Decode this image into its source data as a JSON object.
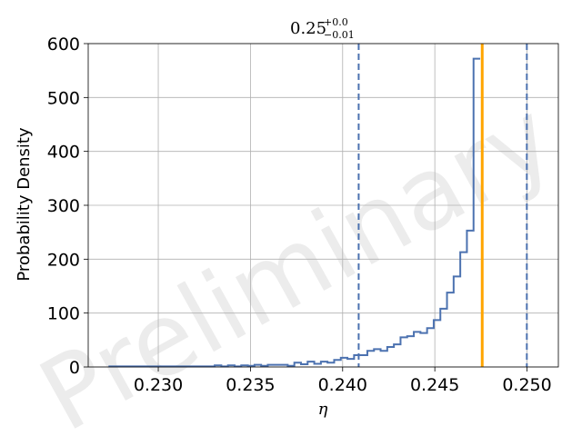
{
  "chart_data": {
    "type": "histogram",
    "title": {
      "base": "0.25",
      "upper": "+0.0",
      "lower": "−0.01"
    },
    "xlabel": "η",
    "ylabel": "Probability Density",
    "xlim": [
      0.2262,
      0.2517
    ],
    "ylim": [
      0,
      600
    ],
    "x_ticks": [
      {
        "value": 0.23,
        "label": "0.230"
      },
      {
        "value": 0.235,
        "label": "0.235"
      },
      {
        "value": 0.24,
        "label": "0.240"
      },
      {
        "value": 0.245,
        "label": "0.245"
      },
      {
        "value": 0.25,
        "label": "0.250"
      }
    ],
    "y_ticks": [
      {
        "value": 0,
        "label": "0"
      },
      {
        "value": 100,
        "label": "100"
      },
      {
        "value": 200,
        "label": "200"
      },
      {
        "value": 300,
        "label": "300"
      },
      {
        "value": 400,
        "label": "400"
      },
      {
        "value": 500,
        "label": "500"
      },
      {
        "value": 600,
        "label": "600"
      }
    ],
    "grid": true,
    "watermark": "Preliminary",
    "series": [
      {
        "color": "#4c72b0",
        "bin_start": 0.2273,
        "bin_width": 0.00036,
        "values": [
          1,
          1,
          1,
          1,
          1,
          1,
          1,
          1,
          1,
          1,
          1,
          1,
          1,
          1,
          1,
          1,
          3,
          1,
          3,
          1,
          3,
          2,
          4,
          2,
          4,
          4,
          4,
          2,
          8,
          5,
          10,
          6,
          10,
          8,
          13,
          17,
          15,
          22,
          22,
          30,
          33,
          30,
          37,
          42,
          55,
          57,
          65,
          63,
          72,
          87,
          108,
          138,
          168,
          213,
          253,
          572
        ]
      }
    ],
    "vertical_lines": [
      {
        "x": 0.24087,
        "style": "dashed",
        "color": "#4c72b0"
      },
      {
        "x": 0.24999,
        "style": "dashed",
        "color": "#4c72b0"
      },
      {
        "x": 0.24757,
        "style": "solid",
        "color": "#ffa500"
      }
    ]
  }
}
